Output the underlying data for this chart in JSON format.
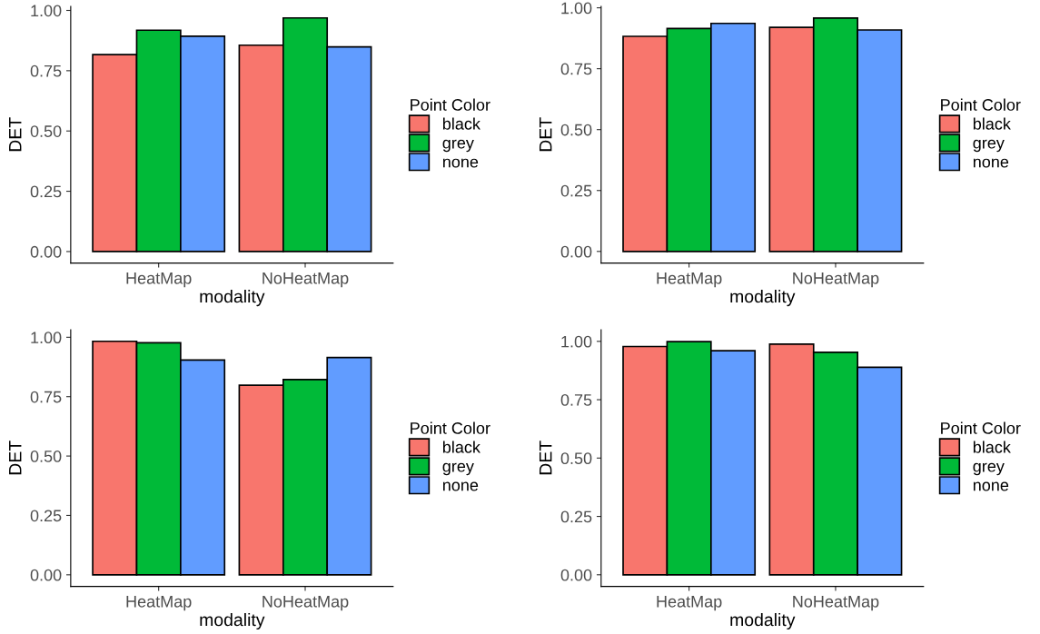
{
  "chart_data": [
    {
      "type": "bar",
      "categories": [
        "HeatMap",
        "NoHeatMap"
      ],
      "xlabel": "modality",
      "ylabel": "DET",
      "legend_title": "Point Color",
      "legend": "right",
      "grid": false,
      "ylim": [
        -0.048,
        1.017
      ],
      "yticks": [
        {
          "value": 0,
          "label": "0.00"
        },
        {
          "value": 0.25,
          "label": "0.25"
        },
        {
          "value": 0.5,
          "label": "0.50"
        },
        {
          "value": 0.75,
          "label": "0.75"
        },
        {
          "value": 1,
          "label": "1.00"
        }
      ],
      "series": [
        {
          "name": "black",
          "color": "#f8766d",
          "values": [
            0.817,
            0.856
          ]
        },
        {
          "name": "grey",
          "color": "#00ba38",
          "values": [
            0.918,
            0.969
          ]
        },
        {
          "name": "none",
          "color": "#619cff",
          "values": [
            0.893,
            0.849
          ]
        }
      ]
    },
    {
      "type": "bar",
      "categories": [
        "HeatMap",
        "NoHeatMap"
      ],
      "xlabel": "modality",
      "ylabel": "DET",
      "legend_title": "Point Color",
      "legend": "right",
      "grid": false,
      "ylim": [
        -0.048,
        1.006
      ],
      "yticks": [
        {
          "value": 0,
          "label": "0.00"
        },
        {
          "value": 0.25,
          "label": "0.25"
        },
        {
          "value": 0.5,
          "label": "0.50"
        },
        {
          "value": 0.75,
          "label": "0.75"
        },
        {
          "value": 1,
          "label": "1.00"
        }
      ],
      "series": [
        {
          "name": "black",
          "color": "#f8766d",
          "values": [
            0.883,
            0.92
          ]
        },
        {
          "name": "grey",
          "color": "#00ba38",
          "values": [
            0.915,
            0.958
          ]
        },
        {
          "name": "none",
          "color": "#619cff",
          "values": [
            0.936,
            0.909
          ]
        }
      ]
    },
    {
      "type": "bar",
      "categories": [
        "HeatMap",
        "NoHeatMap"
      ],
      "xlabel": "modality",
      "ylabel": "DET",
      "legend_title": "Point Color",
      "legend": "right",
      "grid": false,
      "ylim": [
        -0.049,
        1.032
      ],
      "yticks": [
        {
          "value": 0,
          "label": "0.00"
        },
        {
          "value": 0.25,
          "label": "0.25"
        },
        {
          "value": 0.5,
          "label": "0.50"
        },
        {
          "value": 0.75,
          "label": "0.75"
        },
        {
          "value": 1,
          "label": "1.00"
        }
      ],
      "series": [
        {
          "name": "black",
          "color": "#f8766d",
          "values": [
            0.983,
            0.798
          ]
        },
        {
          "name": "grey",
          "color": "#00ba38",
          "values": [
            0.977,
            0.822
          ]
        },
        {
          "name": "none",
          "color": "#619cff",
          "values": [
            0.904,
            0.915
          ]
        }
      ]
    },
    {
      "type": "bar",
      "categories": [
        "HeatMap",
        "NoHeatMap"
      ],
      "xlabel": "modality",
      "ylabel": "DET",
      "legend_title": "Point Color",
      "legend": "right",
      "grid": false,
      "ylim": [
        -0.05,
        1.05
      ],
      "yticks": [
        {
          "value": 0,
          "label": "0.00"
        },
        {
          "value": 0.25,
          "label": "0.25"
        },
        {
          "value": 0.5,
          "label": "0.50"
        },
        {
          "value": 0.75,
          "label": "0.75"
        },
        {
          "value": 1,
          "label": "1.00"
        }
      ],
      "series": [
        {
          "name": "black",
          "color": "#f8766d",
          "values": [
            0.978,
            0.988
          ]
        },
        {
          "name": "grey",
          "color": "#00ba38",
          "values": [
            0.999,
            0.953
          ]
        },
        {
          "name": "none",
          "color": "#619cff",
          "values": [
            0.96,
            0.889
          ]
        }
      ]
    }
  ]
}
